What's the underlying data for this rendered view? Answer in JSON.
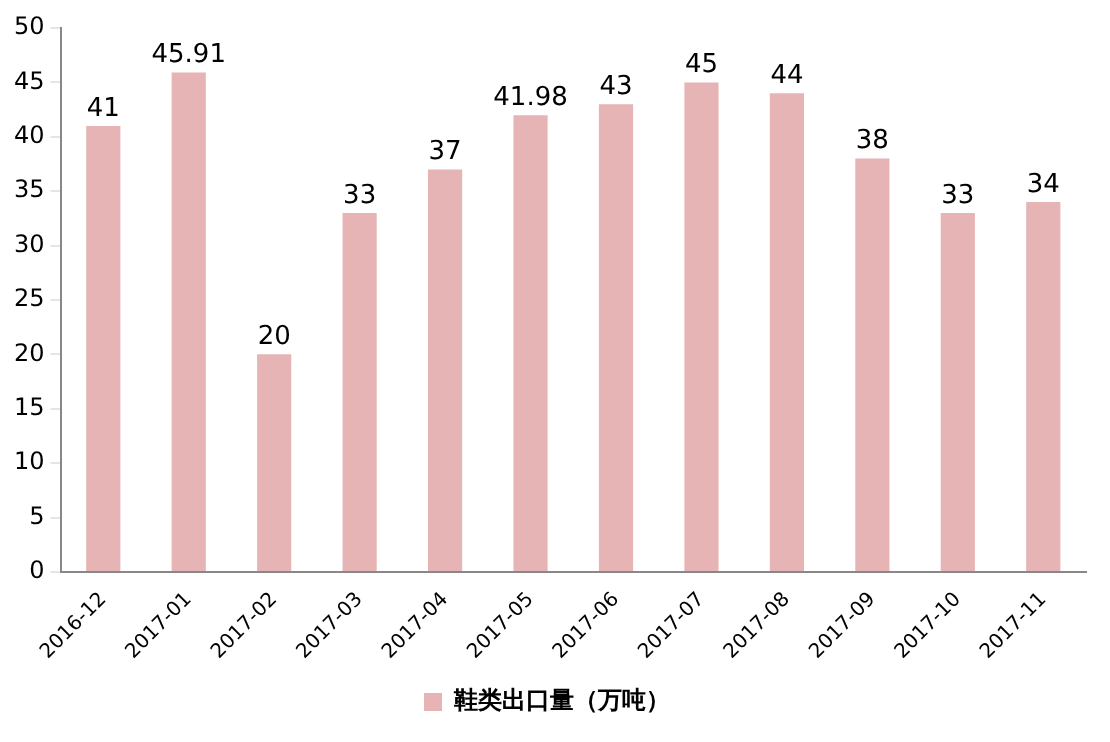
{
  "chart_data": {
    "type": "bar",
    "categories": [
      "2016-12",
      "2017-01",
      "2017-02",
      "2017-03",
      "2017-04",
      "2017-05",
      "2017-06",
      "2017-07",
      "2017-08",
      "2017-09",
      "2017-10",
      "2017-11"
    ],
    "series": [
      {
        "name": "鞋类出口量（万吨）",
        "color": "#e6b4b4",
        "values": [
          41,
          45.91,
          20,
          33,
          37,
          41.98,
          43,
          45,
          44,
          38,
          33,
          34
        ]
      }
    ],
    "ylim": [
      0,
      50
    ],
    "yticks": [
      0,
      5,
      10,
      15,
      20,
      25,
      30,
      35,
      40,
      45,
      50
    ],
    "grid": false,
    "legend": "bottom",
    "data_labels": true
  }
}
